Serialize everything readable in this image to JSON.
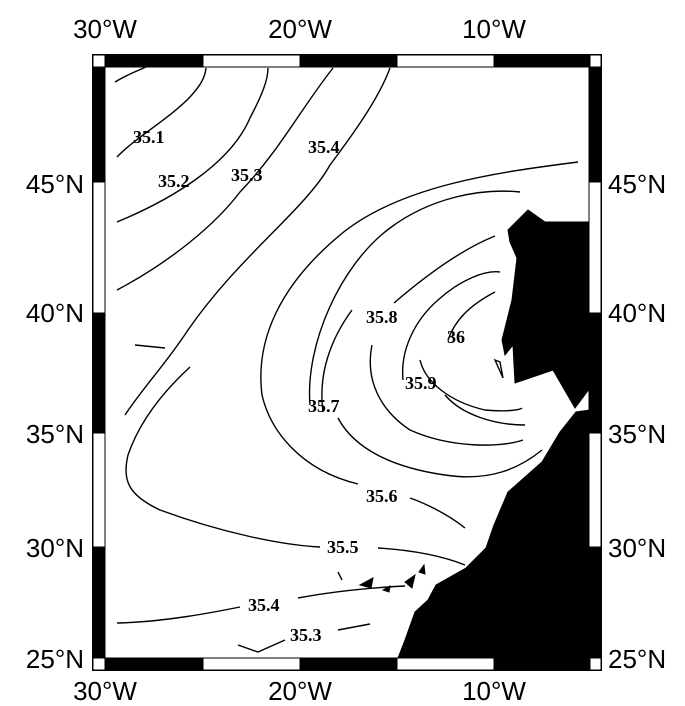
{
  "map": {
    "axes": {
      "x_ticks": [
        "30°W",
        "20°W",
        "10°W"
      ],
      "y_ticks": [
        "25°N",
        "30°N",
        "35°N",
        "40°N",
        "45°N"
      ]
    },
    "contour_labels": [
      "35.1",
      "35.2",
      "35.3",
      "35.4",
      "35.8",
      "36",
      "35.9",
      "35.7",
      "35.6",
      "35.5",
      "35.4",
      "35.3"
    ],
    "colors": {
      "land": "#000000",
      "lines": "#000000",
      "background": "#ffffff"
    }
  }
}
